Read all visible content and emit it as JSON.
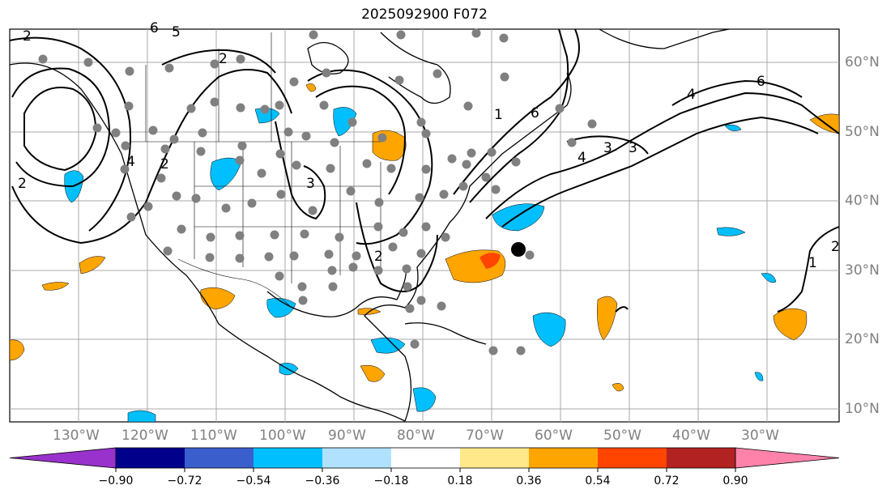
{
  "title": "2025092900 F072",
  "map": {
    "lon_labels": [
      "130°W",
      "120°W",
      "110°W",
      "100°W",
      "90°W",
      "80°W",
      "70°W",
      "60°W",
      "50°W",
      "40°W",
      "30°W"
    ],
    "lat_labels": [
      "60°N",
      "50°N",
      "40°N",
      "30°N",
      "20°N",
      "10°N"
    ],
    "contour_labels": [
      "2",
      "6",
      "5",
      "2",
      "4",
      "2",
      "3",
      "1",
      "6",
      "4",
      "3",
      "6",
      "4",
      "3",
      "2",
      "2",
      "1",
      "2"
    ]
  },
  "colorbar": {
    "tick_labels": [
      "−0.90",
      "−0.72",
      "−0.54",
      "−0.36",
      "−0.18",
      "0.18",
      "0.36",
      "0.54",
      "0.72",
      "0.90"
    ],
    "colors": [
      "#9932cc",
      "#00008b",
      "#3a5fcd",
      "#00bfff",
      "#b0e2ff",
      "#ffffff",
      "#ffe88a",
      "#ffa500",
      "#ff4500",
      "#b22222",
      "#ff82ab"
    ]
  },
  "colors": {
    "ocean_bg": "#ffffff",
    "grid": "#a9a9a9",
    "contour": "#000000",
    "station_dot": "#808080",
    "marker": "#000000"
  }
}
